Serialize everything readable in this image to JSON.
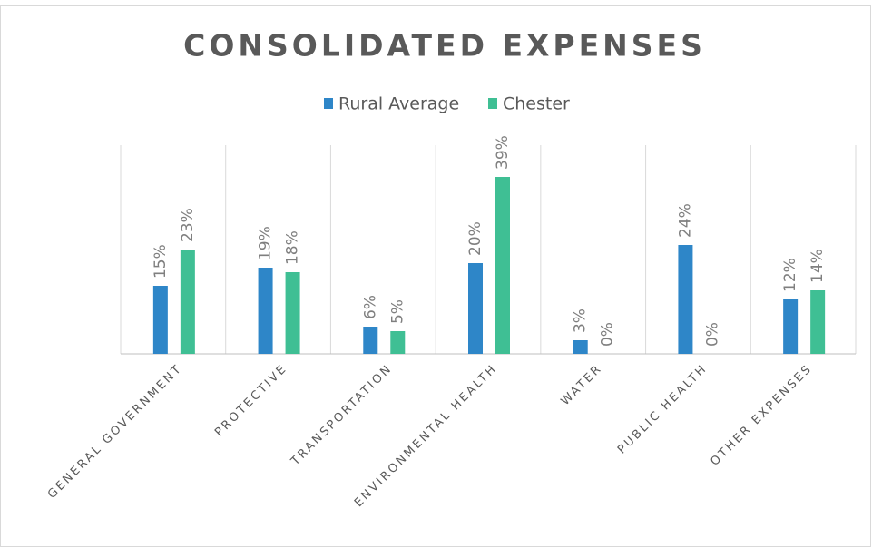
{
  "chart_data": {
    "type": "bar",
    "title": "CONSOLIDATED EXPENSES",
    "categories": [
      "GENERAL GOVERNMENT",
      "PROTECTIVE",
      "TRANSPORTATION",
      "ENVIRONMENTAL HEALTH",
      "WATER",
      "PUBLIC HEALTH",
      "OTHER EXPENSES"
    ],
    "series": [
      {
        "name": "Rural Average",
        "color": "#2e86c8",
        "values": [
          15,
          19,
          6,
          20,
          3,
          24,
          12
        ],
        "value_labels": [
          "15%",
          "19%",
          "6%",
          "20%",
          "3%",
          "24%",
          "12%"
        ]
      },
      {
        "name": "Chester",
        "color": "#3fbf94",
        "values": [
          23,
          18,
          5,
          39,
          0,
          0,
          14
        ],
        "value_labels": [
          "23%",
          "18%",
          "5%",
          "39%",
          "0%",
          "0%",
          "14%"
        ]
      }
    ],
    "ylim": [
      0,
      45
    ],
    "legend": "top"
  }
}
